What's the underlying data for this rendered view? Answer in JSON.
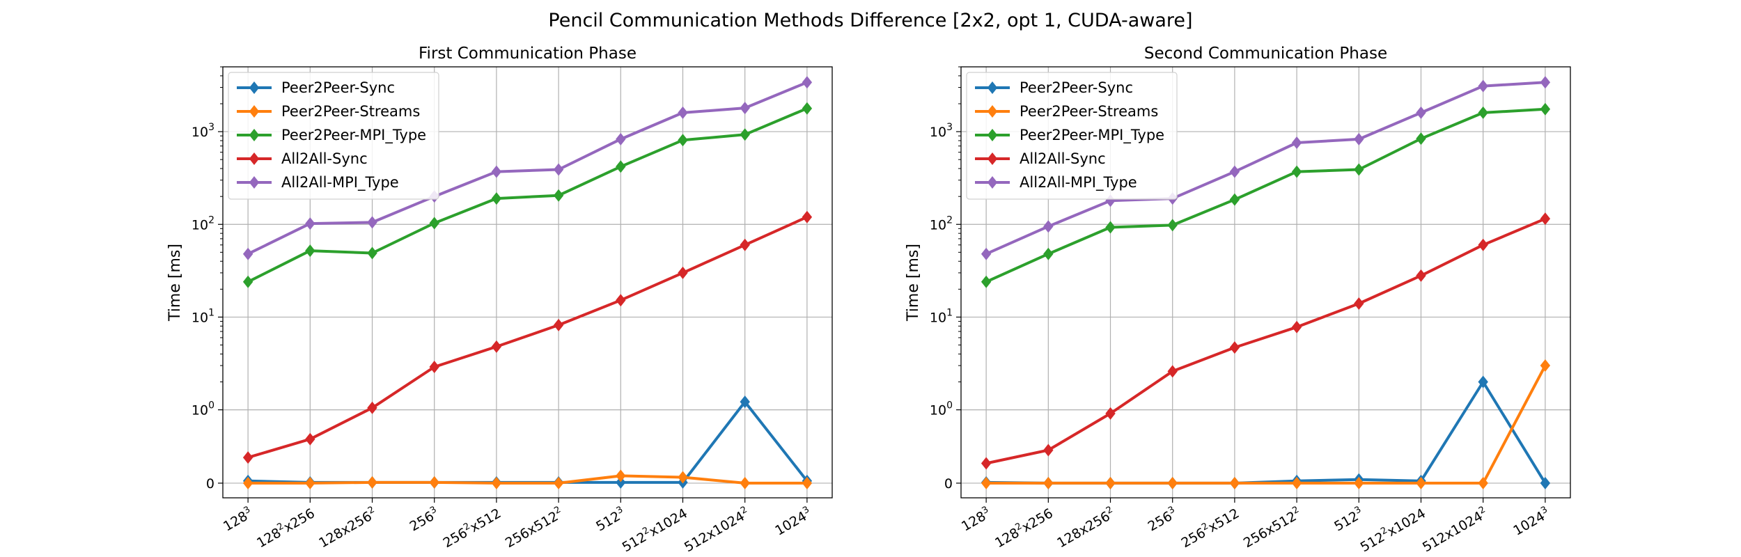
{
  "figure": {
    "title": "Pencil Communication Methods Difference [2x2, opt 1, CUDA-aware]"
  },
  "chart_data": [
    {
      "type": "line",
      "title": "First Communication Phase",
      "xlabel": "",
      "ylabel": "Time [ms]",
      "yscale": "symlog",
      "ylim": [
        -0.2,
        5000
      ],
      "y_ticks": [
        0,
        1,
        10,
        100,
        1000
      ],
      "y_tick_labels": [
        "0",
        "10^0",
        "10^1",
        "10^2",
        "10^3"
      ],
      "grid": true,
      "legend": "top-left",
      "categories": [
        {
          "base": "128",
          "exp": "3",
          "rest": ""
        },
        {
          "base": "128",
          "exp": "2",
          "rest": "x256"
        },
        {
          "base": "128x256",
          "exp": "2",
          "rest": ""
        },
        {
          "base": "256",
          "exp": "3",
          "rest": ""
        },
        {
          "base": "256",
          "exp": "2",
          "rest": "x512"
        },
        {
          "base": "256x512",
          "exp": "2",
          "rest": ""
        },
        {
          "base": "512",
          "exp": "3",
          "rest": ""
        },
        {
          "base": "512",
          "exp": "2",
          "rest": "x1024"
        },
        {
          "base": "512x1024",
          "exp": "2",
          "rest": ""
        },
        {
          "base": "1024",
          "exp": "3",
          "rest": ""
        }
      ],
      "series": [
        {
          "name": "Peer2Peer-Sync",
          "color": "#1f77b4",
          "values": [
            0.03,
            0.01,
            0.01,
            0.01,
            0.01,
            0.01,
            0.01,
            0.01,
            1.22,
            0.03
          ]
        },
        {
          "name": "Peer2Peer-Streams",
          "color": "#ff7f0e",
          "values": [
            0.0,
            0.0,
            0.01,
            0.01,
            0.0,
            0.0,
            0.1,
            0.08,
            0.0,
            0.0
          ]
        },
        {
          "name": "Peer2Peer-MPI_Type",
          "color": "#2ca02c",
          "values": [
            24,
            52,
            49,
            103,
            190,
            205,
            420,
            810,
            930,
            1780
          ]
        },
        {
          "name": "All2All-Sync",
          "color": "#d62728",
          "values": [
            0.35,
            0.6,
            1.05,
            2.9,
            4.8,
            8.2,
            15.2,
            30,
            60,
            120
          ]
        },
        {
          "name": "All2All-MPI_Type",
          "color": "#9467bd",
          "values": [
            48,
            102,
            105,
            200,
            370,
            390,
            830,
            1600,
            1800,
            3400
          ]
        }
      ]
    },
    {
      "type": "line",
      "title": "Second Communication Phase",
      "xlabel": "",
      "ylabel": "Time [ms]",
      "yscale": "symlog",
      "ylim": [
        -0.2,
        5000
      ],
      "y_ticks": [
        0,
        1,
        10,
        100,
        1000
      ],
      "y_tick_labels": [
        "0",
        "10^0",
        "10^1",
        "10^2",
        "10^3"
      ],
      "grid": true,
      "legend": "top-left",
      "categories": [
        {
          "base": "128",
          "exp": "3",
          "rest": ""
        },
        {
          "base": "128",
          "exp": "2",
          "rest": "x256"
        },
        {
          "base": "128x256",
          "exp": "2",
          "rest": ""
        },
        {
          "base": "256",
          "exp": "3",
          "rest": ""
        },
        {
          "base": "256",
          "exp": "2",
          "rest": "x512"
        },
        {
          "base": "256x512",
          "exp": "2",
          "rest": ""
        },
        {
          "base": "512",
          "exp": "3",
          "rest": ""
        },
        {
          "base": "512",
          "exp": "2",
          "rest": "x1024"
        },
        {
          "base": "512x1024",
          "exp": "2",
          "rest": ""
        },
        {
          "base": "1024",
          "exp": "3",
          "rest": ""
        }
      ],
      "series": [
        {
          "name": "Peer2Peer-Sync",
          "color": "#1f77b4",
          "values": [
            0.01,
            0.0,
            0.0,
            0.0,
            0.0,
            0.03,
            0.05,
            0.03,
            2.0,
            0.0
          ]
        },
        {
          "name": "Peer2Peer-Streams",
          "color": "#ff7f0e",
          "values": [
            0.0,
            0.0,
            0.0,
            0.0,
            0.0,
            0.0,
            0.0,
            0.0,
            0.0,
            3.0
          ]
        },
        {
          "name": "Peer2Peer-MPI_Type",
          "color": "#2ca02c",
          "values": [
            24,
            48,
            93,
            98,
            185,
            370,
            390,
            840,
            1600,
            1750
          ]
        },
        {
          "name": "All2All-Sync",
          "color": "#d62728",
          "values": [
            0.27,
            0.45,
            0.95,
            2.6,
            4.7,
            7.8,
            14,
            28,
            60,
            115
          ]
        },
        {
          "name": "All2All-MPI_Type",
          "color": "#9467bd",
          "values": [
            48,
            95,
            180,
            190,
            370,
            760,
            830,
            1600,
            3100,
            3400
          ]
        }
      ]
    }
  ]
}
